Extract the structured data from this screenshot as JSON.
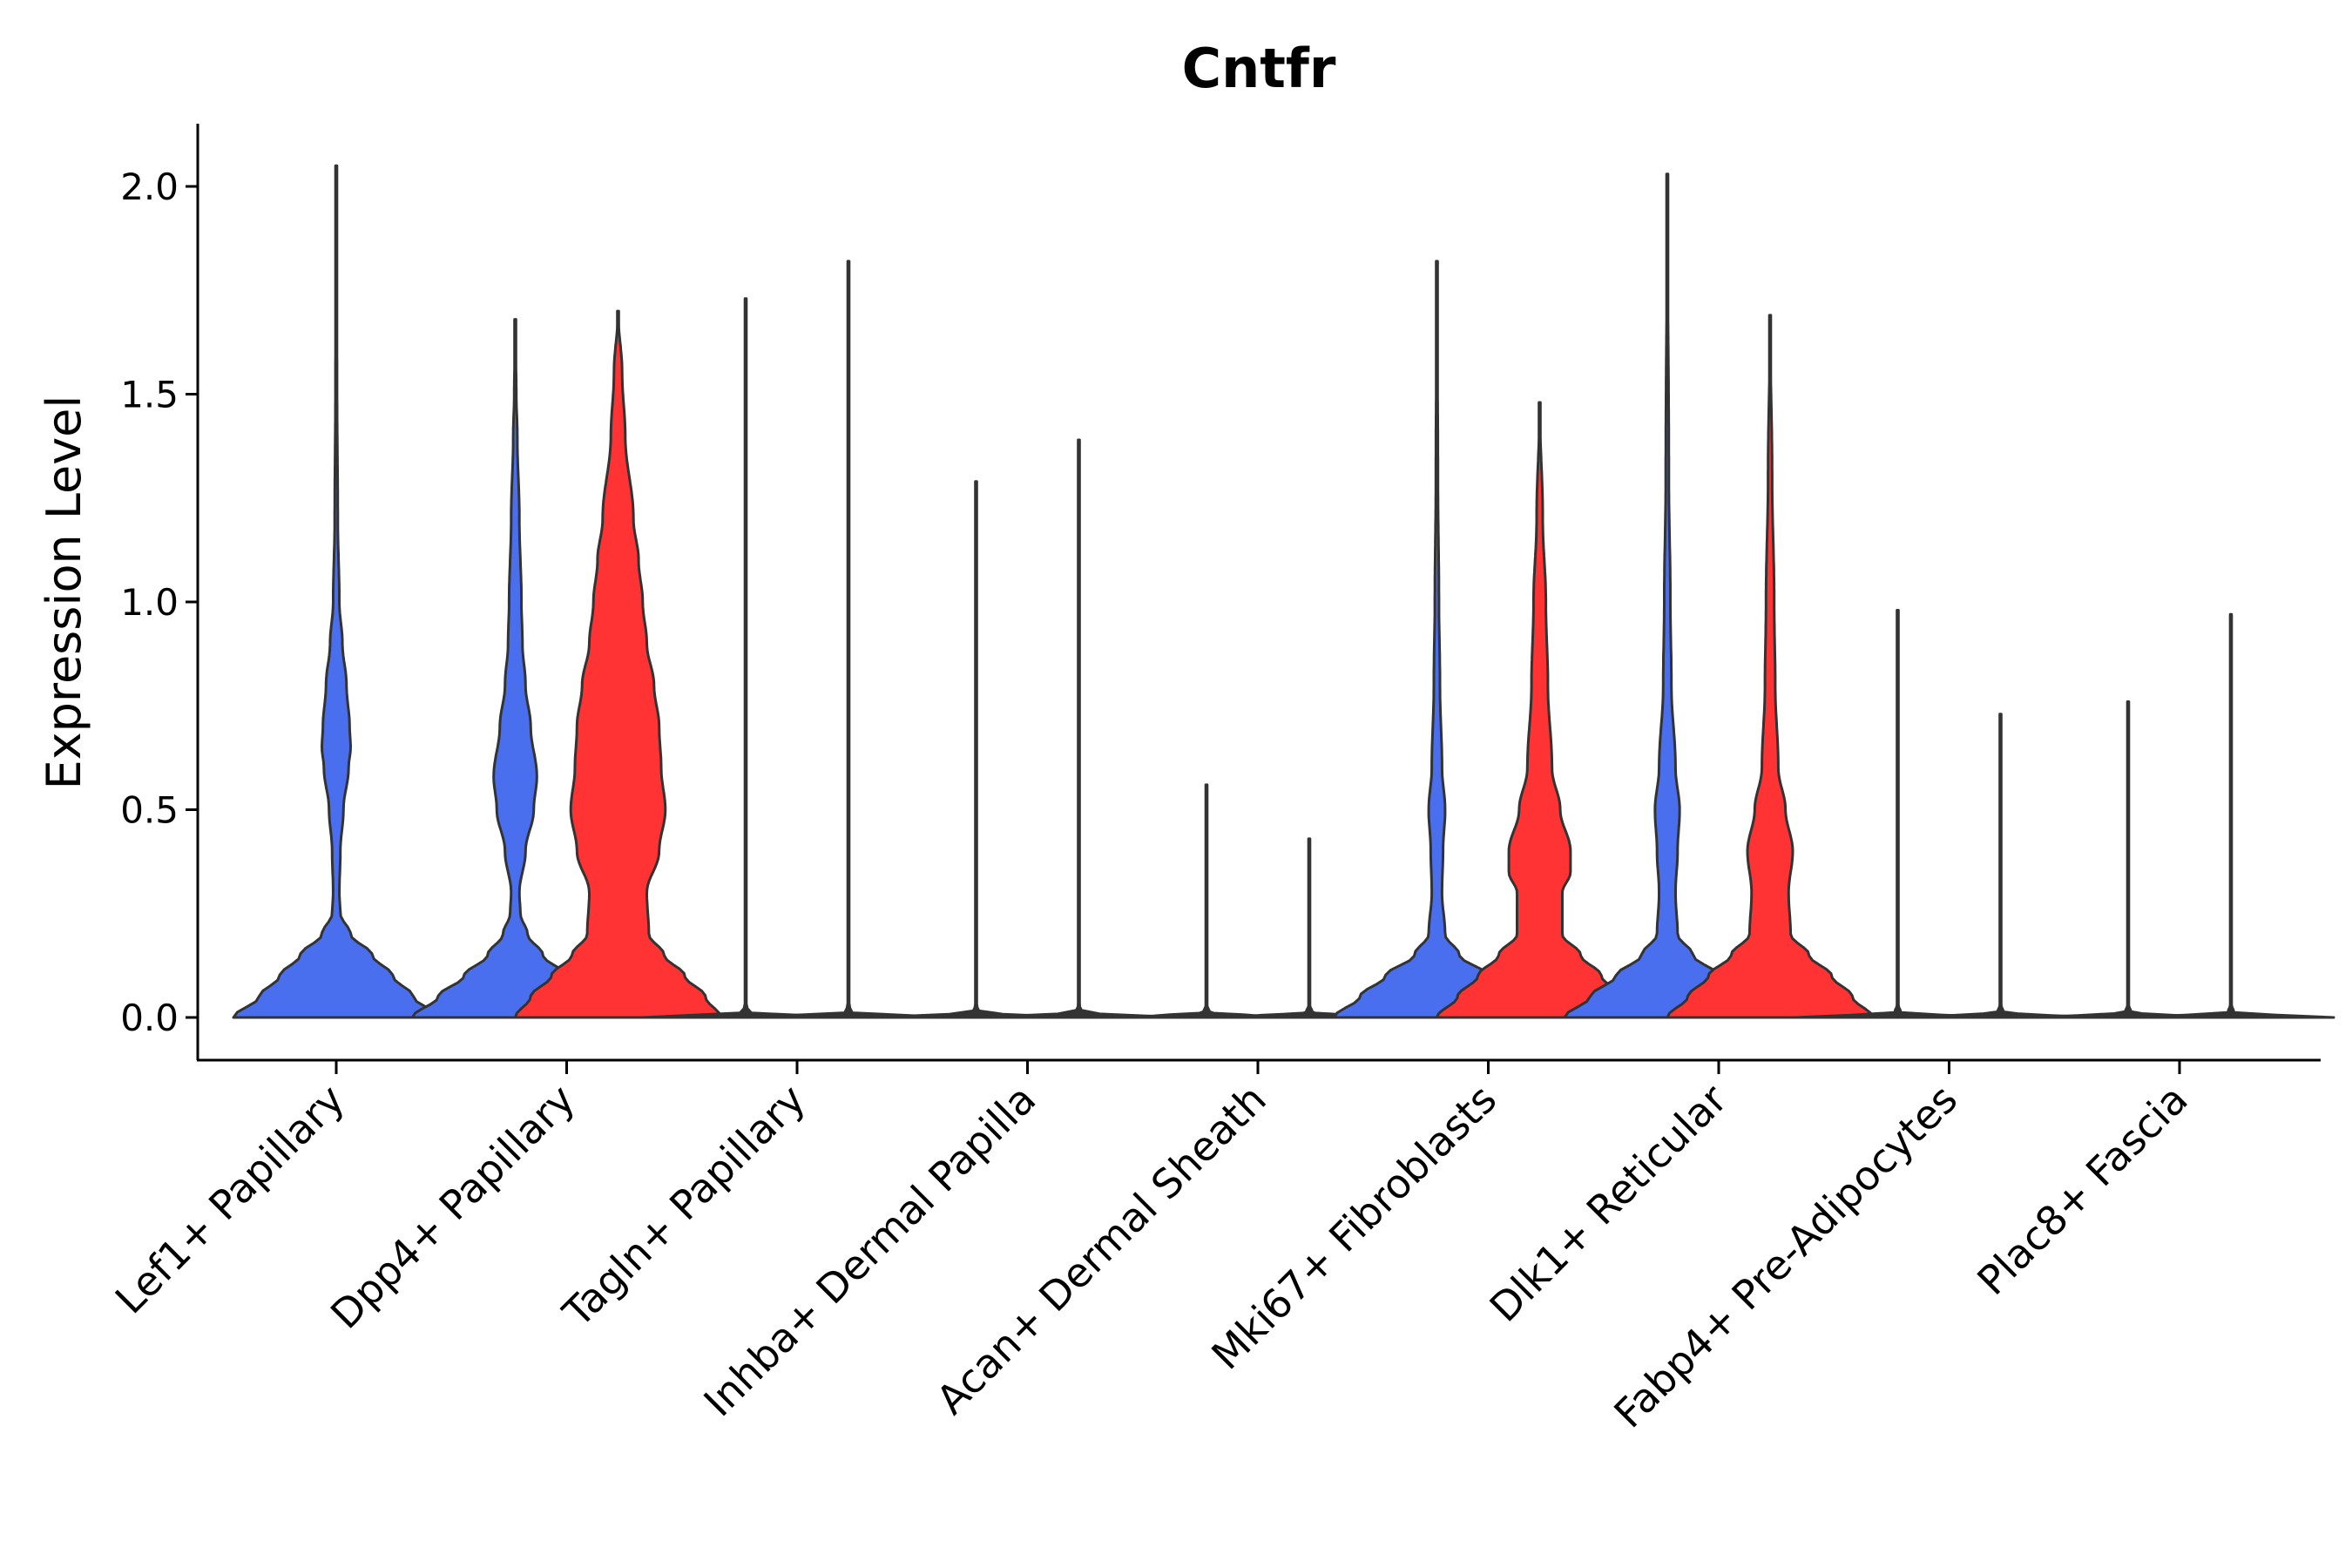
{
  "chart_data": {
    "type": "violin",
    "title": "Cntfr",
    "xlabel": "",
    "ylabel": "Expression Level",
    "ylim": [
      -0.1,
      2.15
    ],
    "yticks": [
      "0.0",
      "0.5",
      "1.0",
      "1.5",
      "2.0"
    ],
    "colors": {
      "blue": "#4A6FEE",
      "red": "#FF3333"
    },
    "categories": [
      "Lef1+ Papillary",
      "Dpp4+ Papillary",
      "Tagln+ Papillary",
      "Inhba+ Dermal Papilla",
      "Acan+ Dermal Sheath",
      "Mki67+ Fibroblasts",
      "Dlk1+ Reticular",
      "Fabp4+ Pre-Adipocytes",
      "Plac8+ Fascia"
    ],
    "violins": [
      {
        "category": 0,
        "side": "center",
        "color": "blue",
        "max": 2.05,
        "profile": [
          [
            0,
            1
          ],
          [
            0.05,
            0.75
          ],
          [
            0.1,
            0.55
          ],
          [
            0.15,
            0.35
          ],
          [
            0.2,
            0.14
          ],
          [
            0.25,
            0.04
          ],
          [
            0.3,
            0.03
          ],
          [
            0.4,
            0.04
          ],
          [
            0.5,
            0.07
          ],
          [
            0.6,
            0.12
          ],
          [
            0.65,
            0.14
          ],
          [
            0.7,
            0.13
          ],
          [
            0.8,
            0.1
          ],
          [
            0.9,
            0.06
          ],
          [
            1.0,
            0.03
          ],
          [
            1.2,
            0.015
          ],
          [
            1.5,
            0.008
          ],
          [
            1.8,
            0.004
          ],
          [
            2.05,
            0
          ]
        ]
      },
      {
        "category": 1,
        "side": "left",
        "color": "blue",
        "max": 1.68,
        "profile": [
          [
            0,
            1
          ],
          [
            0.05,
            0.75
          ],
          [
            0.1,
            0.5
          ],
          [
            0.15,
            0.27
          ],
          [
            0.2,
            0.12
          ],
          [
            0.25,
            0.05
          ],
          [
            0.3,
            0.04
          ],
          [
            0.4,
            0.1
          ],
          [
            0.5,
            0.18
          ],
          [
            0.58,
            0.21
          ],
          [
            0.7,
            0.15
          ],
          [
            0.8,
            0.1
          ],
          [
            0.9,
            0.07
          ],
          [
            1.0,
            0.06
          ],
          [
            1.2,
            0.04
          ],
          [
            1.4,
            0.02
          ],
          [
            1.5,
            0.01
          ],
          [
            1.68,
            0
          ]
        ]
      },
      {
        "category": 1,
        "side": "right",
        "color": "red",
        "max": 1.7,
        "profile": [
          [
            0,
            1
          ],
          [
            0.05,
            0.85
          ],
          [
            0.1,
            0.65
          ],
          [
            0.15,
            0.45
          ],
          [
            0.2,
            0.3
          ],
          [
            0.3,
            0.28
          ],
          [
            0.4,
            0.4
          ],
          [
            0.5,
            0.46
          ],
          [
            0.6,
            0.42
          ],
          [
            0.7,
            0.4
          ],
          [
            0.8,
            0.35
          ],
          [
            0.9,
            0.28
          ],
          [
            1.0,
            0.24
          ],
          [
            1.1,
            0.2
          ],
          [
            1.2,
            0.15
          ],
          [
            1.4,
            0.07
          ],
          [
            1.55,
            0.04
          ],
          [
            1.7,
            0
          ]
        ]
      },
      {
        "category": 2,
        "side": "left",
        "color": "blue",
        "max": 1.73,
        "spike": true
      },
      {
        "category": 2,
        "side": "right",
        "color": "red",
        "max": 1.82,
        "spike": true
      },
      {
        "category": 3,
        "side": "left",
        "color": "blue",
        "max": 1.29,
        "spike": true
      },
      {
        "category": 3,
        "side": "right",
        "color": "red",
        "max": 1.39,
        "spike": true
      },
      {
        "category": 4,
        "side": "left",
        "color": "blue",
        "max": 0.56,
        "spike": true
      },
      {
        "category": 4,
        "side": "right",
        "color": "red",
        "max": 0.43,
        "spike": true
      },
      {
        "category": 5,
        "side": "left",
        "color": "blue",
        "max": 1.82,
        "profile": [
          [
            0,
            1
          ],
          [
            0.05,
            0.75
          ],
          [
            0.1,
            0.5
          ],
          [
            0.15,
            0.22
          ],
          [
            0.2,
            0.08
          ],
          [
            0.3,
            0.05
          ],
          [
            0.4,
            0.06
          ],
          [
            0.5,
            0.08
          ],
          [
            0.6,
            0.05
          ],
          [
            0.8,
            0.03
          ],
          [
            1.0,
            0.02
          ],
          [
            1.3,
            0.01
          ],
          [
            1.82,
            0
          ]
        ]
      },
      {
        "category": 5,
        "side": "right",
        "color": "red",
        "max": 1.48,
        "profile": [
          [
            0,
            1
          ],
          [
            0.05,
            0.8
          ],
          [
            0.1,
            0.6
          ],
          [
            0.15,
            0.4
          ],
          [
            0.2,
            0.22
          ],
          [
            0.3,
            0.22
          ],
          [
            0.35,
            0.3
          ],
          [
            0.4,
            0.3
          ],
          [
            0.5,
            0.2
          ],
          [
            0.6,
            0.12
          ],
          [
            0.8,
            0.08
          ],
          [
            1.0,
            0.06
          ],
          [
            1.2,
            0.03
          ],
          [
            1.48,
            0
          ]
        ]
      },
      {
        "category": 6,
        "side": "left",
        "color": "blue",
        "max": 2.03,
        "profile": [
          [
            0,
            1
          ],
          [
            0.05,
            0.75
          ],
          [
            0.1,
            0.5
          ],
          [
            0.15,
            0.25
          ],
          [
            0.2,
            0.1
          ],
          [
            0.3,
            0.08
          ],
          [
            0.4,
            0.1
          ],
          [
            0.5,
            0.12
          ],
          [
            0.6,
            0.08
          ],
          [
            0.8,
            0.04
          ],
          [
            1.0,
            0.03
          ],
          [
            1.3,
            0.015
          ],
          [
            2.03,
            0
          ]
        ]
      },
      {
        "category": 6,
        "side": "right",
        "color": "red",
        "max": 1.69,
        "profile": [
          [
            0,
            1
          ],
          [
            0.05,
            0.8
          ],
          [
            0.1,
            0.6
          ],
          [
            0.15,
            0.38
          ],
          [
            0.2,
            0.2
          ],
          [
            0.3,
            0.18
          ],
          [
            0.4,
            0.22
          ],
          [
            0.5,
            0.15
          ],
          [
            0.6,
            0.08
          ],
          [
            0.8,
            0.05
          ],
          [
            1.0,
            0.04
          ],
          [
            1.3,
            0.02
          ],
          [
            1.69,
            0
          ]
        ]
      },
      {
        "category": 7,
        "side": "left",
        "color": "blue",
        "max": 0.98,
        "spike": true
      },
      {
        "category": 7,
        "side": "right",
        "color": "red",
        "max": 0.73,
        "spike": true
      },
      {
        "category": 8,
        "side": "left",
        "color": "blue",
        "max": 0.76,
        "spike": true
      },
      {
        "category": 8,
        "side": "right",
        "color": "red",
        "max": 0.97,
        "spike": true
      }
    ]
  }
}
